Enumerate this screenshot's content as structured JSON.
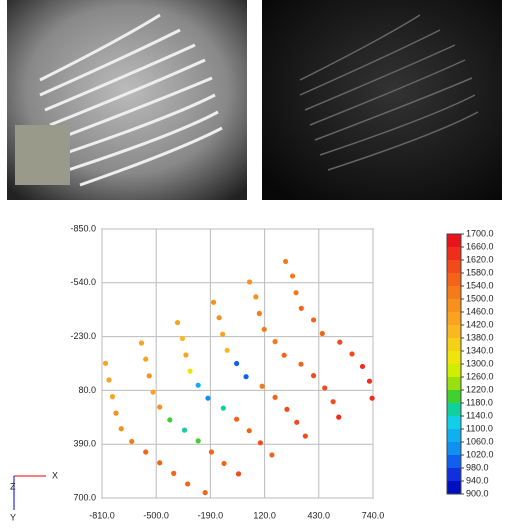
{
  "chart_data": {
    "type": "scatter",
    "xlim": [
      -810,
      740
    ],
    "ylim": [
      -850,
      700
    ],
    "y_inverted": true,
    "grid": true,
    "xticks": [
      {
        "value": -810,
        "label": "-810.0"
      },
      {
        "value": -500,
        "label": "-500.0"
      },
      {
        "value": -190,
        "label": "-190.0"
      },
      {
        "value": 120,
        "label": "120.0"
      },
      {
        "value": 430,
        "label": "430.0"
      },
      {
        "value": 740,
        "label": "740.0"
      }
    ],
    "yticks": [
      {
        "value": -850,
        "label": "-850.0"
      },
      {
        "value": -540,
        "label": "-540.0"
      },
      {
        "value": -230,
        "label": "-230.0"
      },
      {
        "value": 80,
        "label": "80.0"
      },
      {
        "value": 390,
        "label": "390.0"
      },
      {
        "value": 700,
        "label": "700.0"
      }
    ],
    "x": [
      -790,
      -584,
      -378,
      -172,
      34,
      240,
      -770,
      -560,
      -350,
      -140,
      70,
      280,
      -750,
      -540,
      -330,
      -120,
      90,
      300,
      -730,
      -518,
      -306,
      -94,
      118,
      330,
      -700,
      -480,
      -260,
      -40,
      180,
      400,
      -640,
      -422,
      -204,
      14,
      232,
      450,
      -560,
      -338,
      -116,
      106,
      328,
      550,
      -480,
      -260,
      -40,
      180,
      400,
      620,
      -400,
      -184,
      32,
      248,
      464,
      680,
      -320,
      -112,
      96,
      304,
      512,
      720,
      -220,
      -29,
      162,
      353,
      544,
      735
    ],
    "values": [
      -76,
      -193,
      -311,
      -428,
      -545,
      -663,
      20,
      -100,
      -219,
      -339,
      -459,
      -579,
      116,
      -4,
      -124,
      -244,
      -363,
      -483,
      211,
      90,
      -31,
      -151,
      -272,
      -393,
      301,
      176,
      50,
      -75,
      -201,
      -326,
      374,
      250,
      125,
      1,
      -123,
      -248,
      435,
      309,
      182,
      56,
      -71,
      -198,
      497,
      371,
      246,
      120,
      -5,
      -130,
      558,
      435,
      312,
      189,
      66,
      -58,
      619,
      501,
      382,
      264,
      145,
      27,
      669,
      561,
      452,
      343,
      234,
      125
    ],
    "color_values": [
      1460,
      1440,
      1460,
      1480,
      1500,
      1520,
      1440,
      1460,
      1420,
      1480,
      1500,
      1540,
      1460,
      1480,
      1440,
      1460,
      1520,
      1540,
      1480,
      1460,
      1340,
      1420,
      1540,
      1560,
      1500,
      1480,
      1100,
      1020,
      1540,
      1580,
      1520,
      1200,
      1060,
      1000,
      1560,
      1580,
      1560,
      1180,
      1180,
      1540,
      1580,
      1600,
      1580,
      1220,
      1560,
      1580,
      1600,
      1620,
      1560,
      1580,
      1560,
      1600,
      1620,
      1640,
      1580,
      1560,
      1600,
      1600,
      1620,
      1640,
      1580,
      1600,
      1580,
      1620,
      1640,
      1660
    ],
    "colorbar": {
      "ticks": [
        {
          "value": 1700,
          "label": "1700.0"
        },
        {
          "value": 1660,
          "label": "1660.0"
        },
        {
          "value": 1620,
          "label": "1620.0"
        },
        {
          "value": 1580,
          "label": "1580.0"
        },
        {
          "value": 1540,
          "label": "1540.0"
        },
        {
          "value": 1500,
          "label": "1500.0"
        },
        {
          "value": 1460,
          "label": "1460.0"
        },
        {
          "value": 1420,
          "label": "1420.0"
        },
        {
          "value": 1380,
          "label": "1380.0"
        },
        {
          "value": 1340,
          "label": "1340.0"
        },
        {
          "value": 1300,
          "label": "1300.0"
        },
        {
          "value": 1260,
          "label": "1260.0"
        },
        {
          "value": 1220,
          "label": "1220.0"
        },
        {
          "value": 1180,
          "label": "1180.0"
        },
        {
          "value": 1140,
          "label": "1140.0"
        },
        {
          "value": 1100,
          "label": "1100.0"
        },
        {
          "value": 1060,
          "label": "1060.0"
        },
        {
          "value": 1020,
          "label": "1020.0"
        },
        {
          "value": 980,
          "label": "980.0"
        },
        {
          "value": 940,
          "label": "940.0"
        },
        {
          "value": 900,
          "label": "900.0"
        }
      ],
      "colors": [
        "#e8141c",
        "#ee2e1a",
        "#f24a1a",
        "#f46418",
        "#f57a1a",
        "#f7901c",
        "#f9a31e",
        "#fab820",
        "#f5d014",
        "#f0e40a",
        "#d0ee00",
        "#98e010",
        "#40d030",
        "#10d0a0",
        "#10d0e8",
        "#10b0f0",
        "#1090f0",
        "#1060f0",
        "#1030e0",
        "#0010c0"
      ]
    },
    "axes_indicator": {
      "x": "X",
      "y": "Y",
      "z": "Z"
    }
  }
}
